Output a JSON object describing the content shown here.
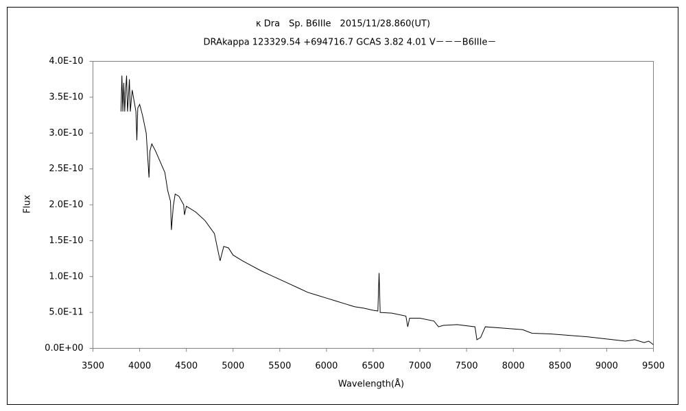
{
  "chart_data": {
    "type": "line",
    "title": "κ Dra　Sp. B6IIIe　2015/11/28.860(UT)",
    "subtitle": "DRAkappa 123329.54 +694716.7 GCAS 3.82 4.01 V－－－B6IIIe－",
    "x_label": "Wavelength(Å)",
    "y_label": "Flux",
    "xlim": [
      3500,
      9500
    ],
    "xticks": [
      3500,
      4000,
      4500,
      5000,
      5500,
      6000,
      6500,
      7000,
      7500,
      8000,
      8500,
      9000,
      9500
    ],
    "ylim": [
      0,
      4e-10
    ],
    "yticks": [
      {
        "value": 0,
        "label": "0.0E+00"
      },
      {
        "value": 5e-11,
        "label": "5.0E-11"
      },
      {
        "value": 1e-10,
        "label": "1.0E-10"
      },
      {
        "value": 1.5e-10,
        "label": "1.5E-10"
      },
      {
        "value": 2e-10,
        "label": "2.0E-10"
      },
      {
        "value": 2.5e-10,
        "label": "2.5E-10"
      },
      {
        "value": 3e-10,
        "label": "3.0E-10"
      },
      {
        "value": 3.5e-10,
        "label": "3.5E-10"
      },
      {
        "value": 4e-10,
        "label": "4.0E-10"
      }
    ],
    "grid": false,
    "color": "#000000",
    "x": [
      3800,
      3810,
      3820,
      3830,
      3840,
      3850,
      3860,
      3870,
      3880,
      3890,
      3900,
      3920,
      3940,
      3960,
      3970,
      3980,
      4000,
      4030,
      4070,
      4100,
      4110,
      4130,
      4170,
      4220,
      4270,
      4300,
      4330,
      4340,
      4360,
      4380,
      4420,
      4471,
      4480,
      4500,
      4600,
      4700,
      4800,
      4861,
      4900,
      4950,
      5000,
      5100,
      5200,
      5300,
      5400,
      5500,
      5600,
      5700,
      5800,
      5900,
      6000,
      6100,
      6200,
      6300,
      6400,
      6500,
      6550,
      6563,
      6575,
      6700,
      6850,
      6870,
      6890,
      7000,
      7150,
      7200,
      7250,
      7400,
      7590,
      7610,
      7650,
      7700,
      7900,
      8100,
      8200,
      8400,
      8600,
      8800,
      9000,
      9200,
      9300,
      9400,
      9450,
      9500
    ],
    "values": [
      3.3e-10,
      3.8e-10,
      3.3e-10,
      3.7e-10,
      3.3e-10,
      3.6e-10,
      3.8e-10,
      3.3e-10,
      3.5e-10,
      3.75e-10,
      3.3e-10,
      3.6e-10,
      3.45e-10,
      3.3e-10,
      2.9e-10,
      3.35e-10,
      3.4e-10,
      3.25e-10,
      3e-10,
      2.38e-10,
      2.75e-10,
      2.85e-10,
      2.75e-10,
      2.6e-10,
      2.45e-10,
      2.2e-10,
      2.05e-10,
      1.65e-10,
      1.98e-10,
      2.15e-10,
      2.12e-10,
      2e-10,
      1.86e-10,
      1.98e-10,
      1.9e-10,
      1.78e-10,
      1.6e-10,
      1.22e-10,
      1.42e-10,
      1.4e-10,
      1.3e-10,
      1.22e-10,
      1.15e-10,
      1.08e-10,
      1.02e-10,
      9.6e-11,
      9e-11,
      8.4e-11,
      7.8e-11,
      7.4e-11,
      7e-11,
      6.6e-11,
      6.2e-11,
      5.8e-11,
      5.6e-11,
      5.3e-11,
      5.2e-11,
      1.05e-10,
      5e-11,
      4.9e-11,
      4.5e-11,
      3e-11,
      4.2e-11,
      4.2e-11,
      3.8e-11,
      3e-11,
      3.2e-11,
      3.3e-11,
      3e-11,
      1.2e-11,
      1.5e-11,
      3e-11,
      2.8e-11,
      2.6e-11,
      2.1e-11,
      2e-11,
      1.8e-11,
      1.6e-11,
      1.3e-11,
      1e-11,
      1.2e-11,
      8e-12,
      1e-11,
      5e-12
    ]
  }
}
